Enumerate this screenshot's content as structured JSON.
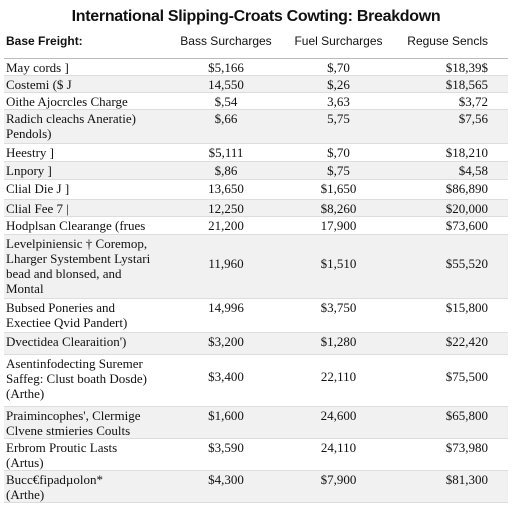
{
  "title": "International Slipping-Croats Cowting: Breakdown",
  "table": {
    "header": [
      "Base Freight:",
      "Bass Surcharges",
      "Fuel Surcharges",
      "Reguse Sencls"
    ],
    "rows": [
      {
        "label": [
          "May cords ]"
        ],
        "cells": [
          "$5,166",
          "$,70",
          "$18,39$"
        ]
      },
      {
        "label": [
          "Costemi ($ J"
        ],
        "cells": [
          "14,550",
          "$,26",
          "$18,565"
        ]
      },
      {
        "label": [
          "Oithe Ajocrcles Charge"
        ],
        "cells": [
          "$,54",
          "3,63",
          "$3,72"
        ]
      },
      {
        "label": [
          "Radich cleachs Aneratie)",
          "Pendols)"
        ],
        "cells": [
          "$,66",
          "5,75",
          "$7,56"
        ]
      },
      {
        "label": [
          "Heestry ]"
        ],
        "cells": [
          "$5,111",
          "$,70",
          "$18,210"
        ]
      },
      {
        "label": [
          "Lnpory ]"
        ],
        "cells": [
          "$,86",
          "$,75",
          "$4,58"
        ]
      },
      {
        "label": [
          "Clial Die J ]"
        ],
        "cells": [
          "13,650",
          "$1,650",
          "$86,890"
        ]
      },
      {
        "label": [
          "Clial Fee 7 |"
        ],
        "cells": [
          "12,250",
          "$8,260",
          "$20,000"
        ]
      },
      {
        "label": [
          "Hodplsan Clearange (frues"
        ],
        "cells": [
          "21,200",
          "17,900",
          "$73,600"
        ]
      },
      {
        "label": [
          "Levelpiniensic † Coremop,",
          "Lharger Systembent Lystari",
          "bead and blonsed, and",
          "Montal"
        ],
        "cells": [
          "11,960",
          "$1,510",
          "$55,520"
        ]
      },
      {
        "label": [
          "Bubsed Poneries and",
          "Exectiee Qvid Pandert)"
        ],
        "cells": [
          "14,996",
          "$3,750",
          "$15,800"
        ]
      },
      {
        "label": [
          "Dvectidea Clearaition')"
        ],
        "cells": [
          "$3,200",
          "$1,280",
          "$22,420"
        ]
      },
      {
        "label": [
          "Asentinfodecting Suremer",
          "Saffeg: Clust boath Dosde)",
          "(Arthe)"
        ],
        "cells": [
          "$3,400",
          "22,110",
          "$75,500"
        ]
      },
      {
        "label": [
          "Praimincophes', Clermige",
          "Clvene stmieries Coults"
        ],
        "cells": [
          "$1,600",
          "24,600",
          "$65,800"
        ]
      },
      {
        "label": [
          "Erbrom Proutic Lasts",
          "(Artus)"
        ],
        "cells": [
          "$3,590",
          "24,110",
          "$73,980"
        ]
      },
      {
        "label": [
          "Bucc€fipadµolon*",
          "(Arthe)"
        ],
        "cells": [
          "$4,300",
          "$7,900",
          "$81,300"
        ]
      }
    ]
  }
}
